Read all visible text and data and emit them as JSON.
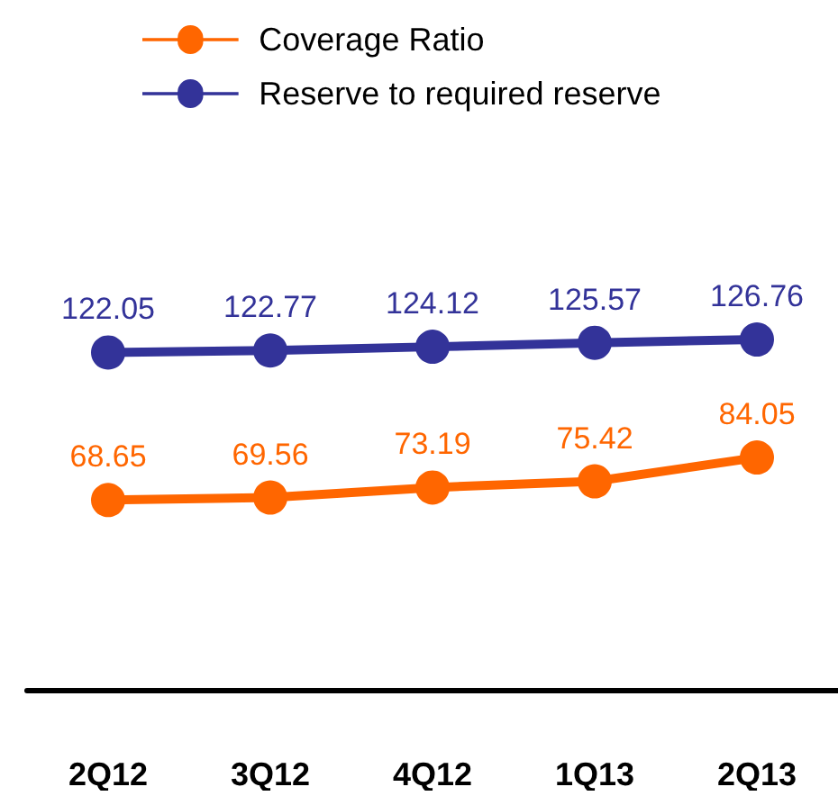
{
  "chart_data": {
    "type": "line",
    "categories": [
      "2Q12",
      "3Q12",
      "4Q12",
      "1Q13",
      "2Q13"
    ],
    "series": [
      {
        "name": "Coverage Ratio",
        "color": "#ff6600",
        "values": [
          68.65,
          69.56,
          73.19,
          75.42,
          84.05
        ]
      },
      {
        "name": "Reserve to required reserve",
        "color": "#333399",
        "values": [
          122.05,
          122.77,
          124.12,
          125.57,
          126.76
        ]
      }
    ],
    "data_labels": true,
    "legend": "top left",
    "marker": "circle",
    "line_style": "solid",
    "grid": false,
    "tick_labels": "x"
  }
}
